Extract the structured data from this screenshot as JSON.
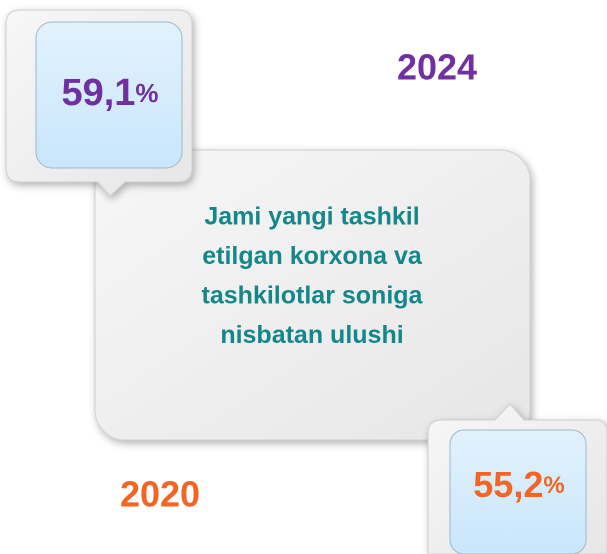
{
  "callouts": [
    {
      "year": "2024",
      "value": "59,1",
      "unit": "%",
      "color": "#7030a0"
    },
    {
      "year": "2020",
      "value": "55,2",
      "unit": "%",
      "color": "#f26522"
    }
  ],
  "center": {
    "color": "#14878a",
    "lines": [
      "Jami yangi tashkil",
      "etilgan korxona va",
      "tashkilotlar soniga",
      "nisbatan ulushi"
    ]
  }
}
